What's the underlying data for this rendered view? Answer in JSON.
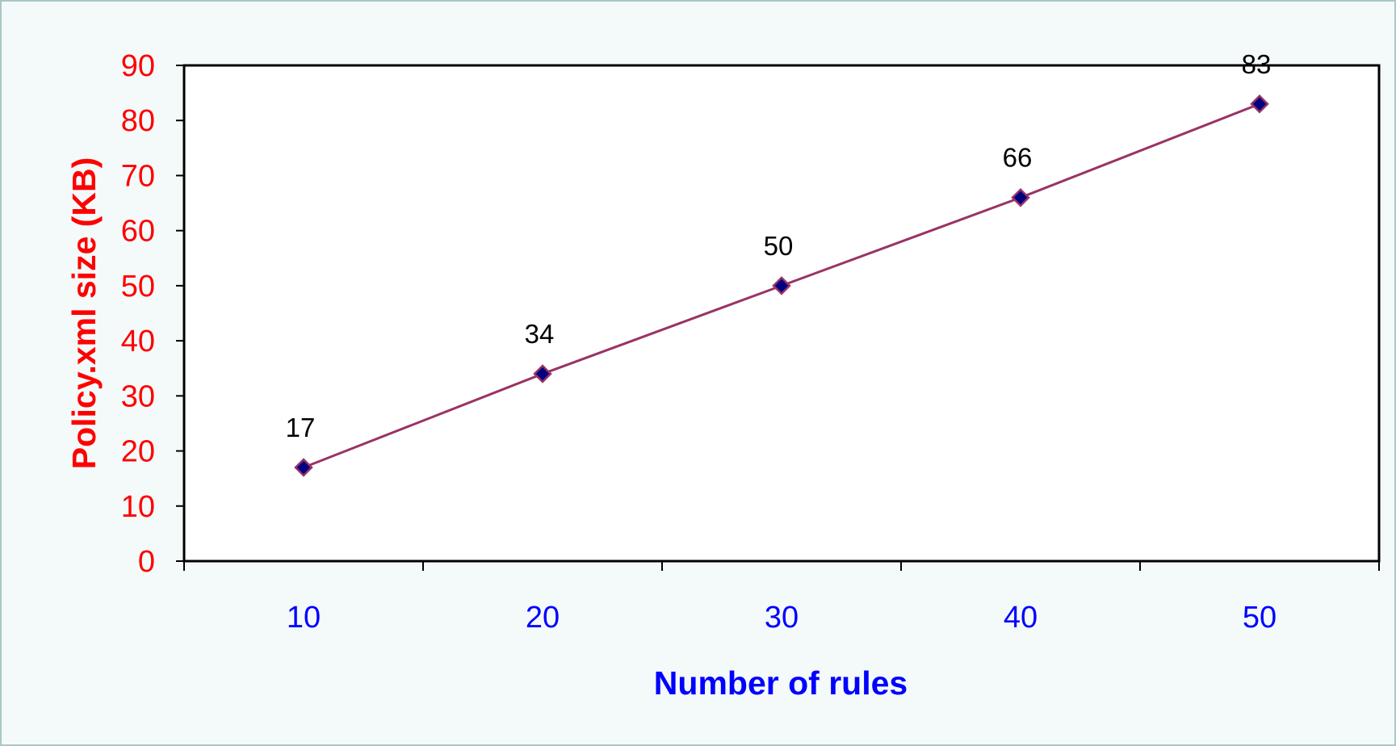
{
  "chart_data": {
    "type": "line",
    "categories": [
      "10",
      "20",
      "30",
      "40",
      "50"
    ],
    "series": [
      {
        "values": [
          17,
          34,
          50,
          66,
          83
        ],
        "data_labels": [
          "17",
          "34",
          "50",
          "66",
          "83"
        ]
      }
    ],
    "xlabel": "Number of rules",
    "ylabel": "Policy.xml size (KB)",
    "ylim": [
      0,
      90
    ],
    "yticks": [
      0,
      10,
      20,
      30,
      40,
      50,
      60,
      70,
      80,
      90
    ],
    "ytick_labels": [
      "0",
      "10",
      "20",
      "30",
      "40",
      "50",
      "60",
      "70",
      "80",
      "90"
    ],
    "grid": false,
    "legend": "none",
    "colors": {
      "line": "#993366",
      "marker_fill": "#000080",
      "marker_edge": "#993366",
      "ytick_text": "#ff0000",
      "xtick_text": "#0000ff",
      "ylabel_text": "#ff0000",
      "xlabel_text": "#0000ff",
      "frame_background": "#f4fafa",
      "frame_border": "#a9c7c7"
    }
  }
}
